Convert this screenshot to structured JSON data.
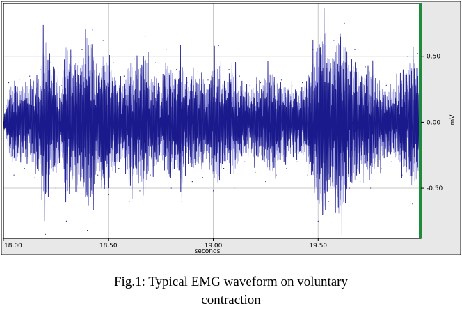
{
  "caption": {
    "line1": "Fig.1: Typical EMG waveform on voluntary",
    "line2": "contraction"
  },
  "chart_data": {
    "type": "line",
    "xlabel": "seconds",
    "ylabel": "mV",
    "xlim": [
      18.0,
      19.99
    ],
    "ylim": [
      -0.88,
      0.9
    ],
    "x_ticks": [
      {
        "value": 18.0,
        "label": "18.00"
      },
      {
        "value": 18.5,
        "label": "18.50"
      },
      {
        "value": 19.0,
        "label": "19.00"
      },
      {
        "value": 19.5,
        "label": "19.50"
      }
    ],
    "y_ticks": [
      {
        "value": 0.5,
        "label": "0.50"
      },
      {
        "value": 0.0,
        "label": "0.00"
      },
      {
        "value": -0.5,
        "label": "-0.50"
      }
    ],
    "grid": true,
    "colors": {
      "signal_dark": "#1a1a8c",
      "signal_light": "#8c8cd9",
      "marker": "#1e8a3a",
      "grid": "#c8c8c8",
      "frame": "#000000",
      "axis_panel": "#e8e8e8"
    },
    "marker_x": 19.99,
    "series": [
      {
        "x": [
          18.0,
          18.025,
          18.05,
          18.075,
          18.1,
          18.125,
          18.15,
          18.175,
          18.2,
          18.225,
          18.25,
          18.275,
          18.3,
          18.325,
          18.35,
          18.375,
          18.4,
          18.425,
          18.45,
          18.475,
          18.5,
          18.525,
          18.55,
          18.575,
          18.6,
          18.625,
          18.65,
          18.675,
          18.7,
          18.725,
          18.75,
          18.775,
          18.8,
          18.825,
          18.85,
          18.875,
          18.9,
          18.925,
          18.95,
          18.975,
          19.0,
          19.025,
          19.05,
          19.075,
          19.1,
          19.125,
          19.15,
          19.175,
          19.2,
          19.225,
          19.25,
          19.275,
          19.3,
          19.325,
          19.35,
          19.375,
          19.4,
          19.425,
          19.45,
          19.475,
          19.5,
          19.525,
          19.55,
          19.575,
          19.6,
          19.625,
          19.65,
          19.675,
          19.7,
          19.725,
          19.75,
          19.775,
          19.8,
          19.825,
          19.85,
          19.875,
          19.9,
          19.925,
          19.95,
          19.975,
          19.99
        ],
        "y": [
          0.02,
          0.3,
          -0.4,
          0.32,
          -0.35,
          0.35,
          -0.42,
          0.4,
          -0.85,
          0.45,
          -0.5,
          0.28,
          -0.75,
          0.5,
          -0.6,
          0.55,
          -0.82,
          0.7,
          -0.4,
          0.62,
          -0.55,
          0.45,
          -0.35,
          0.35,
          -0.6,
          0.48,
          -0.52,
          0.65,
          -0.4,
          0.45,
          -0.3,
          0.55,
          -0.5,
          0.4,
          -0.6,
          0.3,
          -0.45,
          0.38,
          -0.42,
          0.32,
          -0.52,
          0.58,
          -0.35,
          0.4,
          -0.5,
          0.35,
          -0.3,
          0.28,
          -0.38,
          0.3,
          -0.45,
          0.48,
          -0.4,
          0.32,
          -0.35,
          0.28,
          -0.3,
          0.3,
          -0.4,
          0.55,
          -0.75,
          0.9,
          -0.6,
          0.62,
          -0.88,
          0.75,
          -0.5,
          0.55,
          -0.45,
          0.42,
          -0.5,
          0.38,
          -0.35,
          0.28,
          -0.3,
          0.35,
          -0.4,
          0.5,
          -0.62,
          0.52,
          -0.45
        ]
      }
    ]
  }
}
